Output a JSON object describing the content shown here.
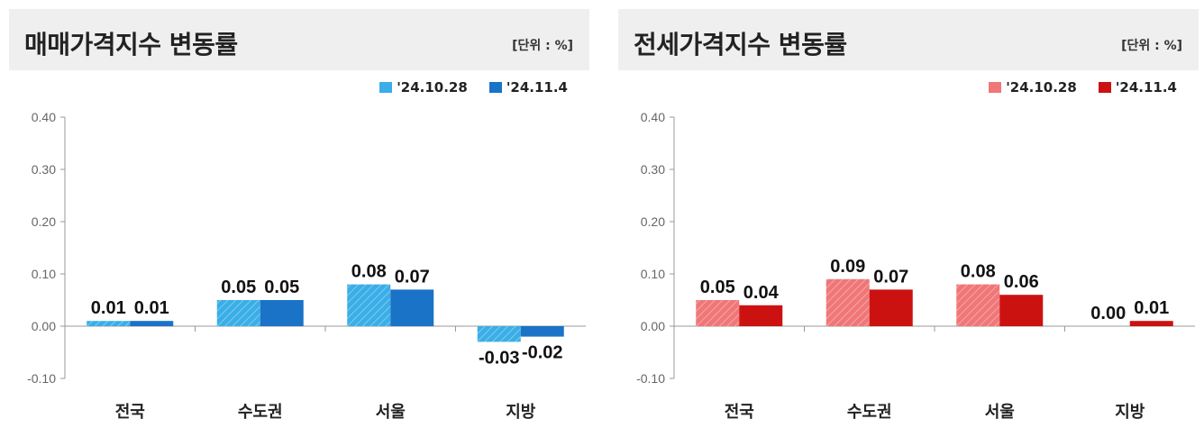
{
  "chart_data": [
    {
      "type": "bar",
      "title": "매매가격지수 변동률",
      "unit": "[단위 : %]",
      "categories": [
        "전국",
        "수도권",
        "서울",
        "지방"
      ],
      "series": [
        {
          "name": "'24.10.28",
          "values": [
            0.01,
            0.05,
            0.08,
            -0.03
          ],
          "labels": [
            "0.01",
            "0.05",
            "0.08",
            "-0.03"
          ]
        },
        {
          "name": "'24.11.4",
          "values": [
            0.01,
            0.05,
            0.07,
            -0.02
          ],
          "labels": [
            "0.01",
            "0.05",
            "0.07",
            "-0.02"
          ]
        }
      ],
      "ylim": [
        -0.1,
        0.4
      ],
      "yticks": [
        "0.40",
        "0.30",
        "0.20",
        "0.10",
        "0.00",
        "-0.10"
      ],
      "grid": false,
      "legend": "top-right",
      "colors": [
        "#3aaee6",
        "#1a73c7"
      ]
    },
    {
      "type": "bar",
      "title": "전세가격지수 변동률",
      "unit": "[단위 : %]",
      "categories": [
        "전국",
        "수도권",
        "서울",
        "지방"
      ],
      "series": [
        {
          "name": "'24.10.28",
          "values": [
            0.05,
            0.09,
            0.08,
            0.0
          ],
          "labels": [
            "0.05",
            "0.09",
            "0.08",
            "0.00"
          ]
        },
        {
          "name": "'24.11.4",
          "values": [
            0.04,
            0.07,
            0.06,
            0.01
          ],
          "labels": [
            "0.04",
            "0.07",
            "0.06",
            "0.01"
          ]
        }
      ],
      "ylim": [
        -0.1,
        0.4
      ],
      "yticks": [
        "0.40",
        "0.30",
        "0.20",
        "0.10",
        "0.00",
        "-0.10"
      ],
      "grid": false,
      "legend": "top-right",
      "colors": [
        "#f07777",
        "#cc1111"
      ]
    }
  ]
}
